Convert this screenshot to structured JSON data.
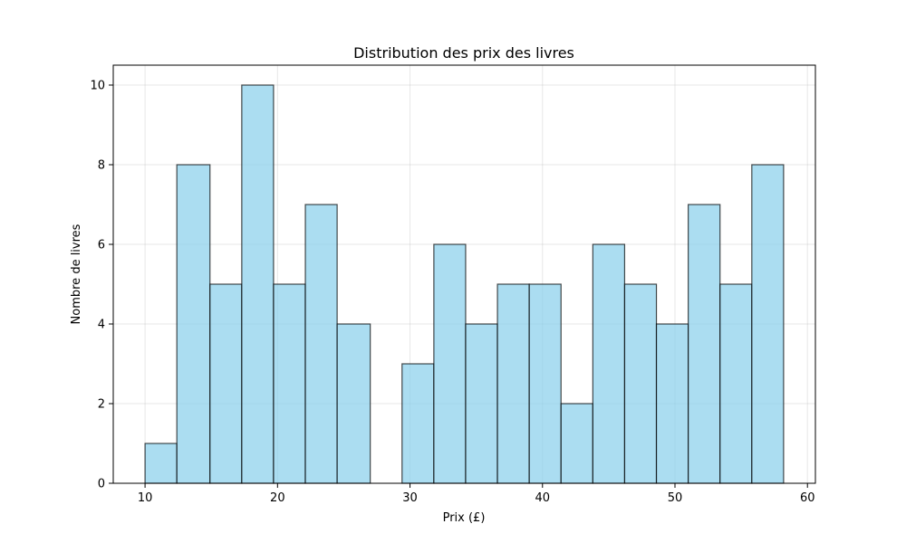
{
  "chart_data": {
    "type": "bar",
    "title": "Distribution des prix des livres",
    "xlabel": "Prix (£)",
    "ylabel": "Nombre de livres",
    "xlim": [
      7.6,
      60.6
    ],
    "ylim": [
      0,
      10.5
    ],
    "grid": true,
    "legend": "none",
    "bar_color": "#87ceeb",
    "bar_edge_color": "#000000",
    "bins": [
      {
        "x0": 10.0,
        "x1": 12.4,
        "count": 1
      },
      {
        "x0": 12.4,
        "x1": 14.9,
        "count": 8
      },
      {
        "x0": 14.9,
        "x1": 17.3,
        "count": 5
      },
      {
        "x0": 17.3,
        "x1": 19.7,
        "count": 10
      },
      {
        "x0": 19.7,
        "x1": 22.1,
        "count": 5
      },
      {
        "x0": 22.1,
        "x1": 24.5,
        "count": 7
      },
      {
        "x0": 24.5,
        "x1": 27.0,
        "count": 4
      },
      {
        "x0": 27.0,
        "x1": 29.4,
        "count": 0
      },
      {
        "x0": 29.4,
        "x1": 31.8,
        "count": 3
      },
      {
        "x0": 31.8,
        "x1": 34.2,
        "count": 6
      },
      {
        "x0": 34.2,
        "x1": 36.6,
        "count": 4
      },
      {
        "x0": 36.6,
        "x1": 39.0,
        "count": 5
      },
      {
        "x0": 39.0,
        "x1": 41.4,
        "count": 5
      },
      {
        "x0": 41.4,
        "x1": 43.8,
        "count": 2
      },
      {
        "x0": 43.8,
        "x1": 46.2,
        "count": 6
      },
      {
        "x0": 46.2,
        "x1": 48.6,
        "count": 5
      },
      {
        "x0": 48.6,
        "x1": 51.0,
        "count": 4
      },
      {
        "x0": 51.0,
        "x1": 53.4,
        "count": 7
      },
      {
        "x0": 53.4,
        "x1": 55.8,
        "count": 5
      },
      {
        "x0": 55.8,
        "x1": 58.2,
        "count": 8
      }
    ],
    "xticks": [
      10,
      20,
      30,
      40,
      50,
      60
    ],
    "yticks": [
      0,
      2,
      4,
      6,
      8,
      10
    ]
  }
}
